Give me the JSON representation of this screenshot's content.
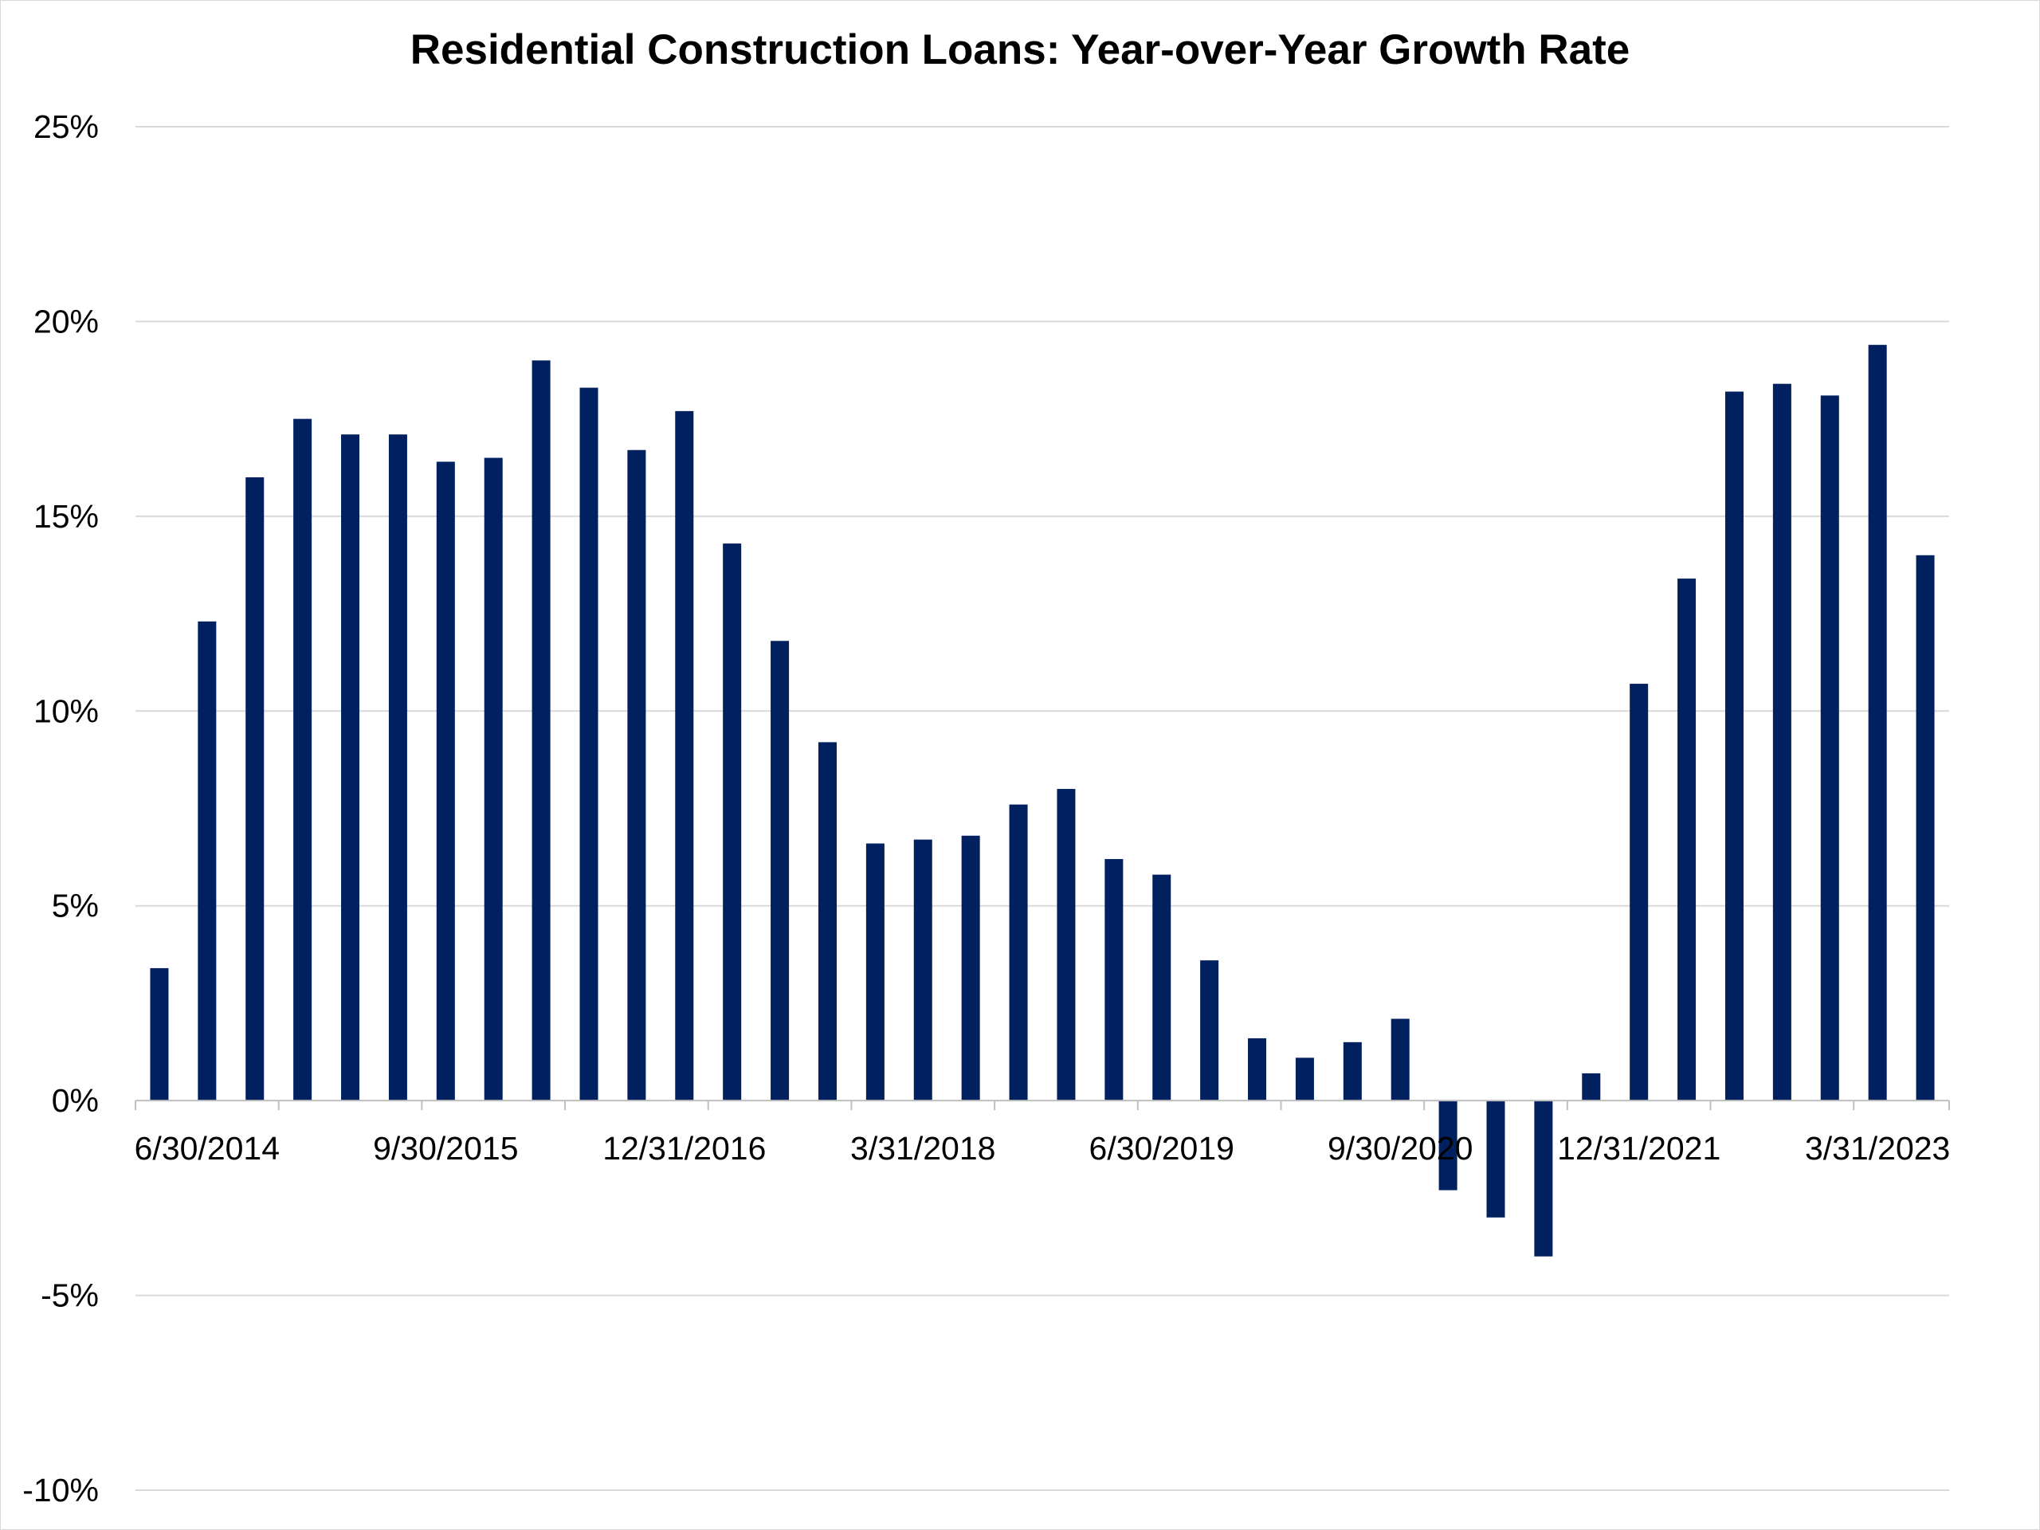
{
  "chart_data": {
    "type": "bar",
    "title": "Residential Construction Loans: Year-over-Year Growth Rate",
    "xlabel": "",
    "ylabel": "",
    "ylim": [
      -0.1,
      0.25
    ],
    "yticks": [
      {
        "value": 0.25,
        "label": "25%"
      },
      {
        "value": 0.2,
        "label": "20%"
      },
      {
        "value": 0.15,
        "label": "15%"
      },
      {
        "value": 0.1,
        "label": "10%"
      },
      {
        "value": 0.05,
        "label": "5%"
      },
      {
        "value": 0.0,
        "label": "0%"
      },
      {
        "value": -0.05,
        "label": "-5%"
      },
      {
        "value": -0.1,
        "label": "-10%"
      }
    ],
    "grid": true,
    "legend": "none",
    "bar_color": "#002060",
    "categories": [
      "3/31/2014",
      "6/30/2014",
      "9/30/2014",
      "12/31/2014",
      "3/31/2015",
      "6/30/2015",
      "9/30/2015",
      "12/31/2015",
      "3/31/2016",
      "6/30/2016",
      "9/30/2016",
      "12/31/2016",
      "3/31/2017",
      "6/30/2017",
      "9/30/2017",
      "12/31/2017",
      "3/31/2018",
      "6/30/2018",
      "9/30/2018",
      "12/31/2018",
      "3/31/2019",
      "6/30/2019",
      "9/30/2019",
      "12/31/2019",
      "3/31/2020",
      "6/30/2020",
      "9/30/2020",
      "12/31/2020",
      "3/31/2021",
      "6/30/2021",
      "9/30/2021",
      "12/31/2021",
      "3/31/2022",
      "6/30/2022",
      "9/30/2022",
      "12/31/2022",
      "3/31/2023",
      "6/30/2023"
    ],
    "values": [
      0.034,
      0.123,
      0.16,
      0.175,
      0.171,
      0.171,
      0.164,
      0.165,
      0.19,
      0.183,
      0.167,
      0.177,
      0.143,
      0.118,
      0.092,
      0.066,
      0.067,
      0.068,
      0.076,
      0.08,
      0.062,
      0.058,
      0.036,
      0.016,
      0.011,
      0.015,
      0.021,
      -0.023,
      -0.03,
      -0.04,
      0.007,
      0.107,
      0.134,
      0.182,
      0.184,
      0.181,
      0.194,
      0.14
    ],
    "visible_tick_labels": [
      {
        "category": "6/30/2014",
        "label": "6/30/2014"
      },
      {
        "category": "9/30/2015",
        "label": "9/30/2015"
      },
      {
        "category": "12/31/2016",
        "label": "12/31/2016"
      },
      {
        "category": "3/31/2018",
        "label": "3/31/2018"
      },
      {
        "category": "6/30/2019",
        "label": "6/30/2019"
      },
      {
        "category": "9/30/2020",
        "label": "9/30/2020"
      },
      {
        "category": "12/31/2021",
        "label": "12/31/2021"
      },
      {
        "category": "3/31/2023",
        "label": "3/31/2023"
      }
    ]
  }
}
